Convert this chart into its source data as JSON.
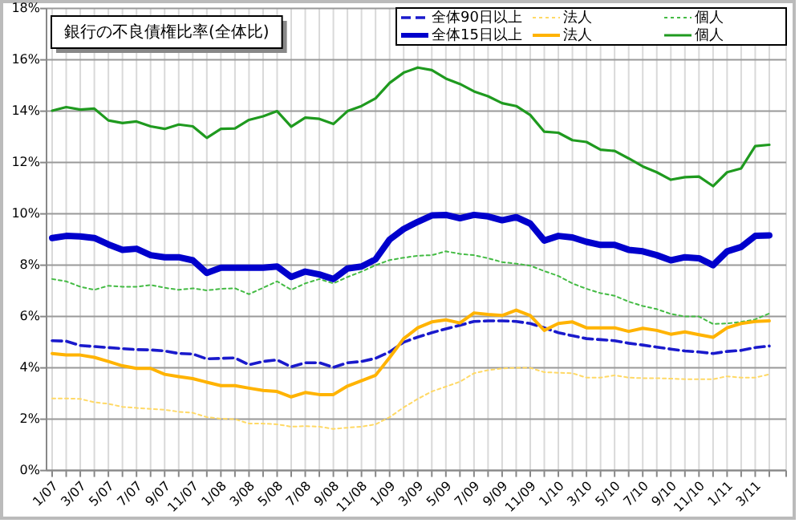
{
  "chart_data": {
    "type": "line",
    "title": "銀行の不良債権比率(全体比)",
    "categories": [
      "1/07",
      null,
      "3/07",
      null,
      "5/07",
      null,
      "7/07",
      null,
      "9/07",
      null,
      "11/07",
      null,
      "1/08",
      null,
      "3/08",
      null,
      "5/08",
      null,
      "7/08",
      null,
      "9/08",
      null,
      "11/08",
      null,
      "1/09",
      null,
      "3/09",
      null,
      "5/09",
      null,
      "7/09",
      null,
      "9/09",
      null,
      "11/09",
      null,
      "1/10",
      null,
      "3/10",
      null,
      "5/10",
      null,
      "7/10",
      null,
      "9/10",
      null,
      "11/10",
      null,
      "1/11",
      null,
      "3/11",
      null
    ],
    "ylim": [
      0,
      18
    ],
    "yticks": [
      {
        "value": 0,
        "label": "0%"
      },
      {
        "value": 2,
        "label": "2%"
      },
      {
        "value": 4,
        "label": "4%"
      },
      {
        "value": 6,
        "label": "6%"
      },
      {
        "value": 8,
        "label": "8%"
      },
      {
        "value": 10,
        "label": "10%"
      },
      {
        "value": 12,
        "label": "12%"
      },
      {
        "value": 14,
        "label": "14%"
      },
      {
        "value": 16,
        "label": "16%"
      },
      {
        "value": 18,
        "label": "18%"
      }
    ],
    "grid": true,
    "legend": "top right",
    "marker": "none",
    "series": [
      {
        "name": "全体90日以上",
        "color": "#1a1acc",
        "line_style": "dashed",
        "values": [
          5.06,
          5.04,
          4.87,
          4.83,
          4.79,
          4.75,
          4.71,
          4.7,
          4.66,
          4.56,
          4.54,
          4.35,
          4.37,
          4.39,
          4.12,
          4.25,
          4.31,
          4.04,
          4.2,
          4.2,
          4.02,
          4.2,
          4.25,
          4.37,
          4.62,
          5.0,
          5.2,
          5.37,
          5.52,
          5.66,
          5.81,
          5.83,
          5.83,
          5.81,
          5.73,
          5.56,
          5.37,
          5.25,
          5.14,
          5.1,
          5.06,
          4.96,
          4.89,
          4.81,
          4.73,
          4.66,
          4.62,
          4.56,
          4.64,
          4.68,
          4.79,
          4.85
        ]
      },
      {
        "name": "法人",
        "color": "#ffd966",
        "line_style": "dotted",
        "values": [
          2.81,
          2.81,
          2.79,
          2.66,
          2.6,
          2.48,
          2.44,
          2.4,
          2.37,
          2.29,
          2.25,
          2.08,
          2.02,
          2.0,
          1.83,
          1.83,
          1.8,
          1.71,
          1.73,
          1.71,
          1.62,
          1.67,
          1.71,
          1.8,
          2.08,
          2.46,
          2.79,
          3.08,
          3.27,
          3.46,
          3.79,
          3.91,
          3.98,
          4.0,
          4.0,
          3.83,
          3.81,
          3.79,
          3.62,
          3.62,
          3.71,
          3.62,
          3.6,
          3.6,
          3.58,
          3.56,
          3.56,
          3.56,
          3.67,
          3.62,
          3.62,
          3.75
        ]
      },
      {
        "name": "個人",
        "color": "#44bb44",
        "line_style": "dotted",
        "values": [
          7.46,
          7.37,
          7.16,
          7.04,
          7.2,
          7.16,
          7.16,
          7.23,
          7.12,
          7.04,
          7.1,
          7.02,
          7.08,
          7.1,
          6.87,
          7.12,
          7.37,
          7.04,
          7.29,
          7.46,
          7.29,
          7.54,
          7.75,
          8.0,
          8.2,
          8.29,
          8.37,
          8.39,
          8.54,
          8.44,
          8.39,
          8.27,
          8.12,
          8.06,
          7.98,
          7.77,
          7.58,
          7.29,
          7.08,
          6.91,
          6.81,
          6.58,
          6.41,
          6.29,
          6.1,
          6.0,
          6.0,
          5.71,
          5.73,
          5.79,
          5.89,
          6.12
        ]
      },
      {
        "name": "全体15日以上",
        "color": "#0000cc",
        "line_style": "solid",
        "values": [
          9.06,
          9.14,
          9.12,
          9.06,
          8.81,
          8.6,
          8.64,
          8.39,
          8.31,
          8.31,
          8.19,
          7.7,
          7.9,
          7.9,
          7.9,
          7.9,
          7.95,
          7.54,
          7.75,
          7.64,
          7.46,
          7.87,
          7.95,
          8.23,
          9.0,
          9.41,
          9.69,
          9.94,
          9.96,
          9.83,
          9.96,
          9.9,
          9.75,
          9.87,
          9.62,
          8.96,
          9.14,
          9.08,
          8.91,
          8.79,
          8.79,
          8.6,
          8.54,
          8.39,
          8.19,
          8.31,
          8.27,
          8.0,
          8.54,
          8.71,
          9.14,
          9.16
        ]
      },
      {
        "name": "法人",
        "color": "#ffb300",
        "line_style": "solid",
        "values": [
          4.56,
          4.5,
          4.5,
          4.41,
          4.25,
          4.08,
          3.98,
          3.98,
          3.75,
          3.66,
          3.58,
          3.44,
          3.31,
          3.31,
          3.21,
          3.12,
          3.08,
          2.87,
          3.04,
          2.96,
          2.96,
          3.29,
          3.5,
          3.71,
          4.4,
          5.14,
          5.56,
          5.79,
          5.87,
          5.75,
          6.14,
          6.08,
          6.04,
          6.25,
          6.04,
          5.46,
          5.73,
          5.79,
          5.56,
          5.56,
          5.56,
          5.42,
          5.54,
          5.46,
          5.31,
          5.4,
          5.29,
          5.19,
          5.56,
          5.73,
          5.81,
          5.83
        ]
      },
      {
        "name": "個人",
        "color": "#1f9a1f",
        "line_style": "solid",
        "values": [
          14.02,
          14.16,
          14.06,
          14.1,
          13.64,
          13.54,
          13.6,
          13.41,
          13.31,
          13.48,
          13.41,
          12.96,
          13.31,
          13.33,
          13.66,
          13.8,
          14.0,
          13.4,
          13.75,
          13.7,
          13.5,
          14.0,
          14.2,
          14.5,
          15.1,
          15.5,
          15.7,
          15.6,
          15.27,
          15.06,
          14.77,
          14.58,
          14.31,
          14.2,
          13.85,
          13.2,
          13.16,
          12.87,
          12.8,
          12.5,
          12.45,
          12.16,
          11.85,
          11.62,
          11.33,
          11.43,
          11.45,
          11.08,
          11.62,
          11.77,
          12.64,
          12.69
        ]
      }
    ]
  }
}
